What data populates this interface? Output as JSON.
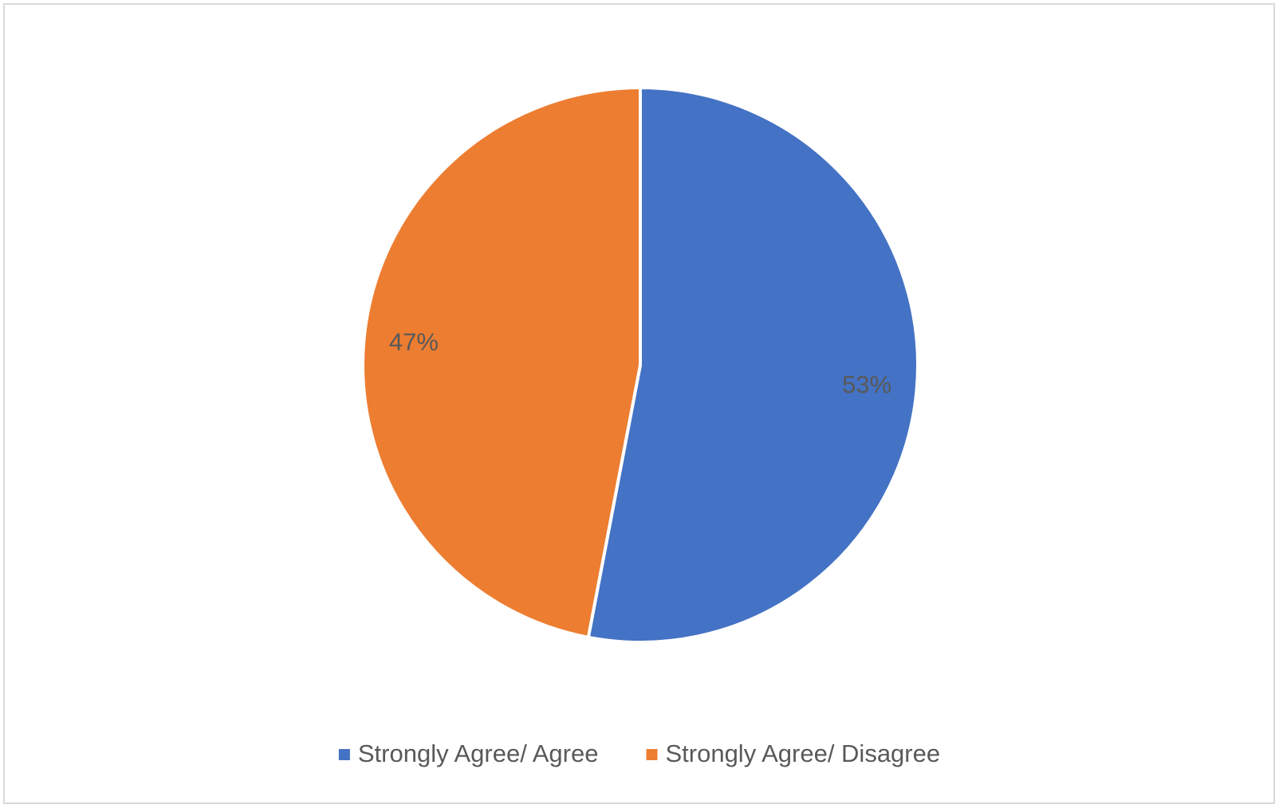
{
  "chart_data": {
    "type": "pie",
    "categories": [
      "Strongly Agree/ Agree",
      "Strongly Agree/ Disagree"
    ],
    "values": [
      53,
      47
    ],
    "value_labels": [
      "53%",
      "47%"
    ],
    "colors": [
      "#4472c4",
      "#ed7d31"
    ],
    "legend": "bottom"
  }
}
